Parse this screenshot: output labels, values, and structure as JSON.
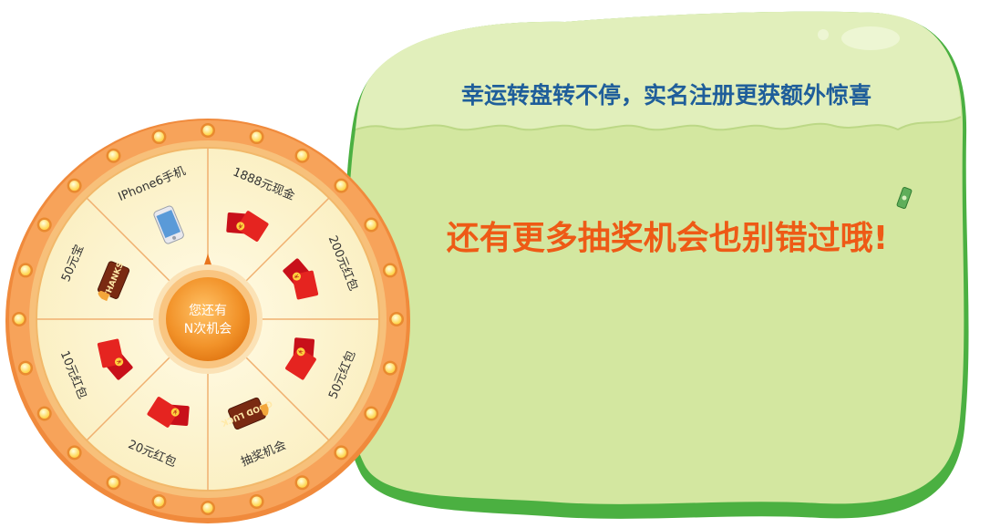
{
  "banner": {
    "title": "幸运转盘转不停，实名注册更获额外惊喜",
    "promo": "还有更多抽奖机会也别错过哦!"
  },
  "wheel": {
    "center_line1": "您还有",
    "center_line2": "N次机会",
    "prizes": [
      {
        "label": "IPhone6手机",
        "icon": "iphone-icon"
      },
      {
        "label": "1888元现金",
        "icon": "red-envelope-icon"
      },
      {
        "label": "200元红包",
        "icon": "red-envelope-icon"
      },
      {
        "label": "50元红包",
        "icon": "red-envelope-icon"
      },
      {
        "label": "抽奖机会",
        "icon": "good-luck-card-icon",
        "card_text": "GOOD LUCK"
      },
      {
        "label": "20元红包",
        "icon": "red-envelope-icon"
      },
      {
        "label": "10元红包",
        "icon": "red-envelope-icon"
      },
      {
        "label": "50元宝",
        "icon": "thanks-card-icon",
        "card_text": "THANKS"
      }
    ]
  },
  "colors": {
    "wheel_rim": "#f7a35a",
    "wheel_face": "#fdf6d3",
    "center_button": "#f2932a",
    "blob_fill": "#d3e7a0",
    "blob_border": "#4bb041",
    "title_color": "#1f5e9a",
    "promo_color": "#ee5a16"
  }
}
